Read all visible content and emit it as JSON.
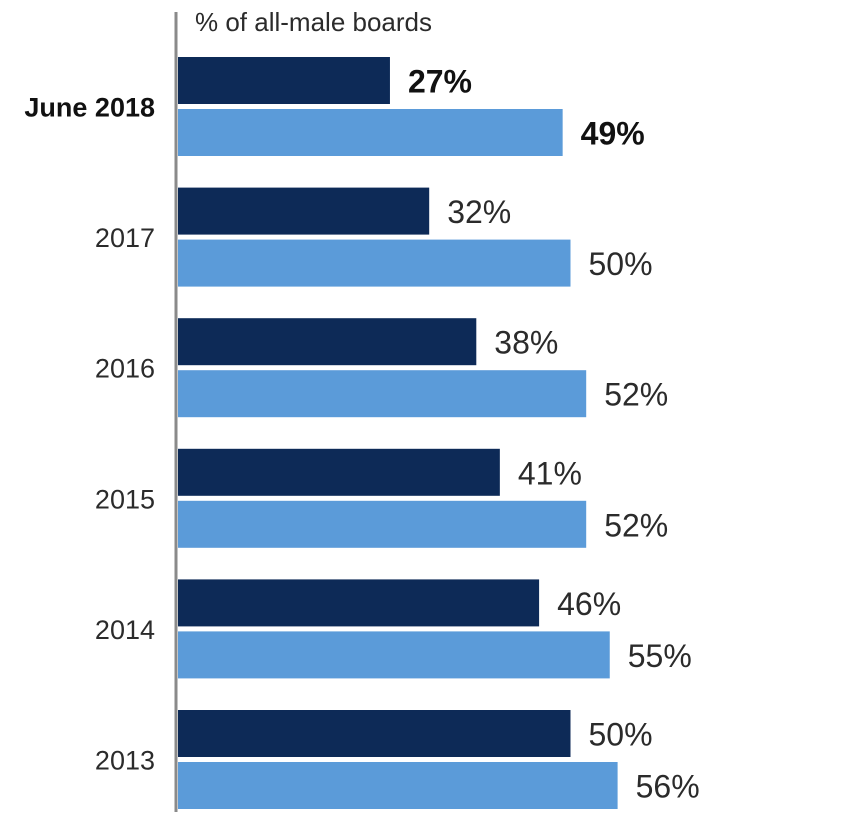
{
  "chart_data": {
    "type": "bar",
    "orientation": "horizontal",
    "title": "% of all-male boards",
    "categories": [
      "June 2018",
      "2017",
      "2016",
      "2015",
      "2014",
      "2013"
    ],
    "emphasized_category": "June 2018",
    "series": [
      {
        "values": [
          27,
          32,
          38,
          41,
          46,
          50
        ],
        "labels": [
          "27%",
          "32%",
          "38%",
          "41%",
          "46%",
          "50%"
        ],
        "color": "#0d2a57"
      },
      {
        "values": [
          49,
          50,
          52,
          52,
          55,
          56
        ],
        "labels": [
          "49%",
          "50%",
          "52%",
          "52%",
          "55%",
          "56%"
        ],
        "color": "#5b9bd9"
      }
    ],
    "xlim": [
      0,
      100
    ],
    "grid": false,
    "legend": "none"
  }
}
